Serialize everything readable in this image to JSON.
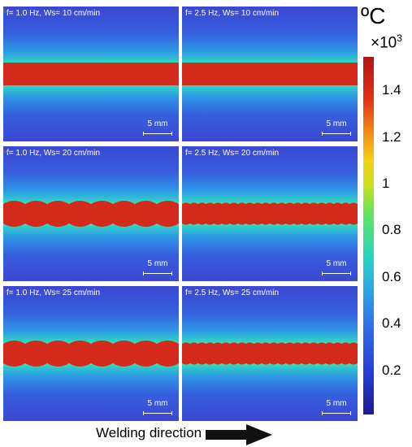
{
  "panels": [
    {
      "label": "f= 1.0 Hz, Ws= 10 cm/min",
      "scale": "5 mm",
      "frequency_hz": 1.0,
      "speed_cm_min": 10,
      "bead": "straight"
    },
    {
      "label": "f= 2.5 Hz, Ws= 10 cm/min",
      "scale": "5 mm",
      "frequency_hz": 2.5,
      "speed_cm_min": 10,
      "bead": "straight"
    },
    {
      "label": "f= 1.0 Hz, Ws= 20 cm/min",
      "scale": "5 mm",
      "frequency_hz": 1.0,
      "speed_cm_min": 20,
      "bead": "wavy-large"
    },
    {
      "label": "f= 2.5 Hz, Ws= 20 cm/min",
      "scale": "5 mm",
      "frequency_hz": 2.5,
      "speed_cm_min": 20,
      "bead": "wavy-fine"
    },
    {
      "label": "f= 1.0 Hz, Ws= 25 cm/min",
      "scale": "5 mm",
      "frequency_hz": 1.0,
      "speed_cm_min": 25,
      "bead": "wavy-large"
    },
    {
      "label": "f= 2.5 Hz, Ws= 25 cm/min",
      "scale": "5 mm",
      "frequency_hz": 2.5,
      "speed_cm_min": 25,
      "bead": "wavy-fine"
    }
  ],
  "colorbar": {
    "unit": "ºC",
    "multiplier": "×10",
    "exponent": "3",
    "ticks": [
      "1.4",
      "1.2",
      "1",
      "0.8",
      "0.6",
      "0.4",
      "0.2"
    ],
    "colors": {
      "low": "#1f1b8f",
      "mid": "#5fe55e",
      "high": "#b21414",
      "background": "#3f49d6"
    }
  },
  "footer": {
    "label": "Welding direction",
    "arrow_icon": "right-arrow-icon"
  }
}
